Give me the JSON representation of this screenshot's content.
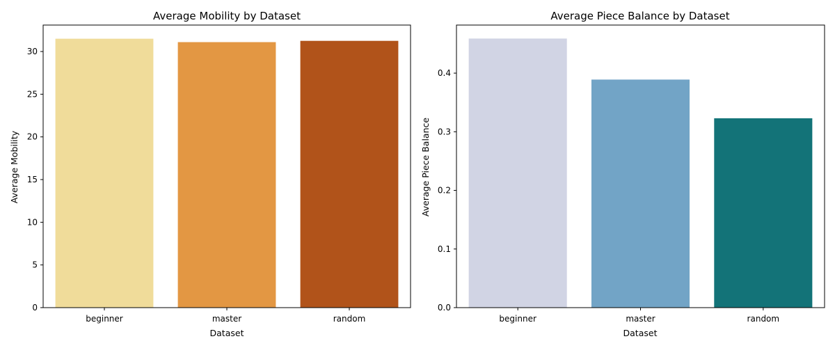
{
  "chart_data": [
    {
      "type": "bar",
      "title": "Average Mobility by Dataset",
      "xlabel": "Dataset",
      "ylabel": "Average Mobility",
      "categories": [
        "beginner",
        "master",
        "random"
      ],
      "values": [
        31.5,
        31.1,
        31.25
      ],
      "colors": [
        "#f0dc9a",
        "#e39743",
        "#b1531a"
      ],
      "ylim": [
        0,
        33.1
      ],
      "yticks": [
        0,
        5,
        10,
        15,
        20,
        25,
        30
      ],
      "grid": false,
      "legend": "none"
    },
    {
      "type": "bar",
      "title": "Average Piece Balance by Dataset",
      "xlabel": "Dataset",
      "ylabel": "Average Piece Balance",
      "categories": [
        "beginner",
        "master",
        "random"
      ],
      "values": [
        0.459,
        0.389,
        0.323
      ],
      "colors": [
        "#d1d4e4",
        "#72a4c6",
        "#137378"
      ],
      "ylim": [
        0,
        0.482
      ],
      "yticks": [
        0.0,
        0.1,
        0.2,
        0.3,
        0.4
      ],
      "tick_decimals": 1,
      "grid": false,
      "legend": "none"
    }
  ]
}
